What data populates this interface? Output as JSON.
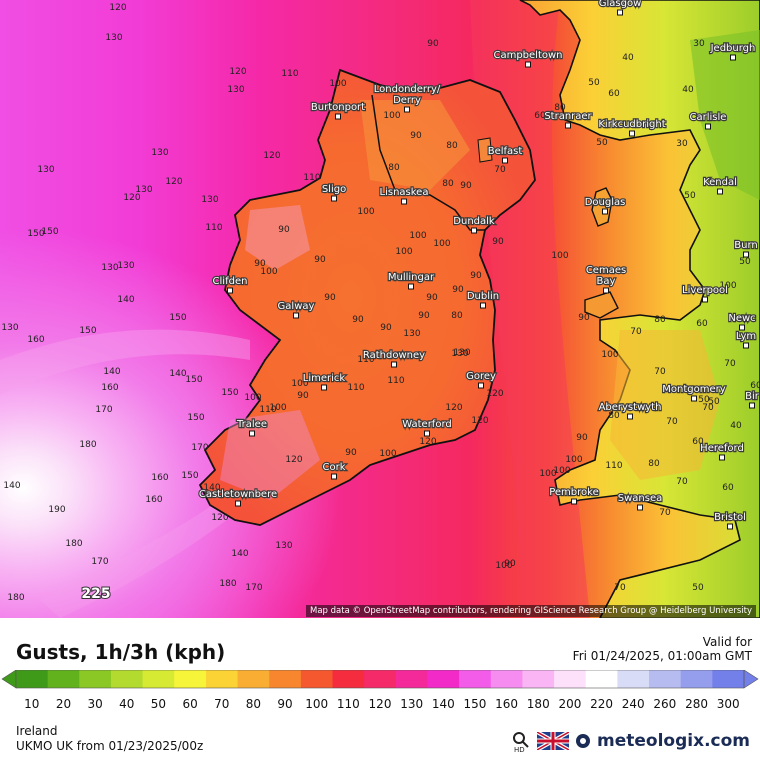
{
  "attribution": "Map data © OpenStreetMap contributors, rendering GIScience Research Group @ Heidelberg University",
  "legend": {
    "title": "Gusts, 1h/3h (kph)",
    "valid_for": "Valid for",
    "valid_time": "Fri 01/24/2025, 01:00am GMT",
    "region": "Ireland",
    "model": "UKMO UK from  01/23/2025/00z",
    "brand": "meteologix.com",
    "zoom_icon": "magnifier-hd-icon",
    "flag_icon": "uk-flag-icon",
    "scale": [
      {
        "label": "10",
        "color": "#3f9a1a"
      },
      {
        "label": "20",
        "color": "#62b21e"
      },
      {
        "label": "30",
        "color": "#8cc825"
      },
      {
        "label": "40",
        "color": "#b3da2e"
      },
      {
        "label": "50",
        "color": "#d6ea33"
      },
      {
        "label": "60",
        "color": "#f7f53a"
      },
      {
        "label": "70",
        "color": "#fbd335"
      },
      {
        "label": "80",
        "color": "#f9ae33"
      },
      {
        "label": "90",
        "color": "#f7862f"
      },
      {
        "label": "100",
        "color": "#f5582e"
      },
      {
        "label": "110",
        "color": "#f42c3e"
      },
      {
        "label": "120",
        "color": "#f52a68"
      },
      {
        "label": "130",
        "color": "#f52a9a"
      },
      {
        "label": "140",
        "color": "#f22ac8"
      },
      {
        "label": "150",
        "color": "#f35ce8"
      },
      {
        "label": "160",
        "color": "#f78cf0"
      },
      {
        "label": "180",
        "color": "#fab6f4"
      },
      {
        "label": "200",
        "color": "#fde0fa"
      },
      {
        "label": "220",
        "color": "#ffffff"
      },
      {
        "label": "240",
        "color": "#d9dcf6"
      },
      {
        "label": "260",
        "color": "#b7bcf0"
      },
      {
        "label": "280",
        "color": "#959ded"
      },
      {
        "label": "300",
        "color": "#7480ea"
      }
    ]
  },
  "cities": [
    {
      "name": "Glasgow"
    },
    {
      "name": "Campbeltown"
    },
    {
      "name": "Jedburgh"
    },
    {
      "name": "Burtonport"
    },
    {
      "name": "Londonderry/\nDerry"
    },
    {
      "name": "Stranraer"
    },
    {
      "name": "Kirkcudbright"
    },
    {
      "name": "Carlisle"
    },
    {
      "name": "Belfast"
    },
    {
      "name": "Sligo"
    },
    {
      "name": "Lisnaskea"
    },
    {
      "name": "Kendal"
    },
    {
      "name": "Douglas"
    },
    {
      "name": "Dundalk"
    },
    {
      "name": "Clifden"
    },
    {
      "name": "Mullingar"
    },
    {
      "name": "Cemaes\nBay"
    },
    {
      "name": "Liverpool"
    },
    {
      "name": "Galway"
    },
    {
      "name": "Dublin"
    },
    {
      "name": "Newc"
    },
    {
      "name": "Lym"
    },
    {
      "name": "Rathdowney"
    },
    {
      "name": "Limerick"
    },
    {
      "name": "Gorey"
    },
    {
      "name": "Aberystwyth"
    },
    {
      "name": "Montgomery"
    },
    {
      "name": "Tralee"
    },
    {
      "name": "Waterford"
    },
    {
      "name": "Hereford"
    },
    {
      "name": "Cork"
    },
    {
      "name": "Castletownbere"
    },
    {
      "name": "Pembroke"
    },
    {
      "name": "Swansea"
    },
    {
      "name": "Bristol"
    },
    {
      "name": "Burn"
    },
    {
      "name": "Bir"
    }
  ],
  "gust_labels": [
    "120",
    "130",
    "120",
    "110",
    "130",
    "100",
    "90",
    "130",
    "120",
    "130",
    "130",
    "110",
    "120",
    "130",
    "100",
    "90",
    "80",
    "80",
    "80",
    "90",
    "70",
    "80",
    "60",
    "50",
    "60",
    "40",
    "30",
    "40",
    "30",
    "50",
    "50",
    "50",
    "110",
    "90",
    "90",
    "100",
    "90",
    "90",
    "90",
    "90",
    "100",
    "100",
    "100",
    "90",
    "80",
    "110",
    "130",
    "90",
    "100",
    "90",
    "90",
    "90",
    "100",
    "130",
    "110",
    "100",
    "100",
    "120",
    "90",
    "90",
    "100",
    "120",
    "120",
    "120",
    "100",
    "100",
    "90",
    "110",
    "100",
    "80",
    "70",
    "60",
    "70",
    "80",
    "90",
    "70",
    "70",
    "70",
    "80",
    "70",
    "40",
    "60",
    "60",
    "70",
    "50",
    "50",
    "140",
    "150",
    "140",
    "150",
    "160",
    "170",
    "180",
    "190",
    "180",
    "170",
    "180",
    "160",
    "150",
    "150",
    "170",
    "160",
    "150",
    "140",
    "150",
    "130",
    "160",
    "130",
    "150",
    "140",
    "225",
    "180",
    "140",
    "120",
    "130",
    "170",
    "140",
    "150",
    "130",
    "120",
    "90",
    "100",
    "110",
    "100",
    "110",
    "120",
    "130",
    "100",
    "100",
    "60",
    "60",
    "50",
    "70"
  ]
}
